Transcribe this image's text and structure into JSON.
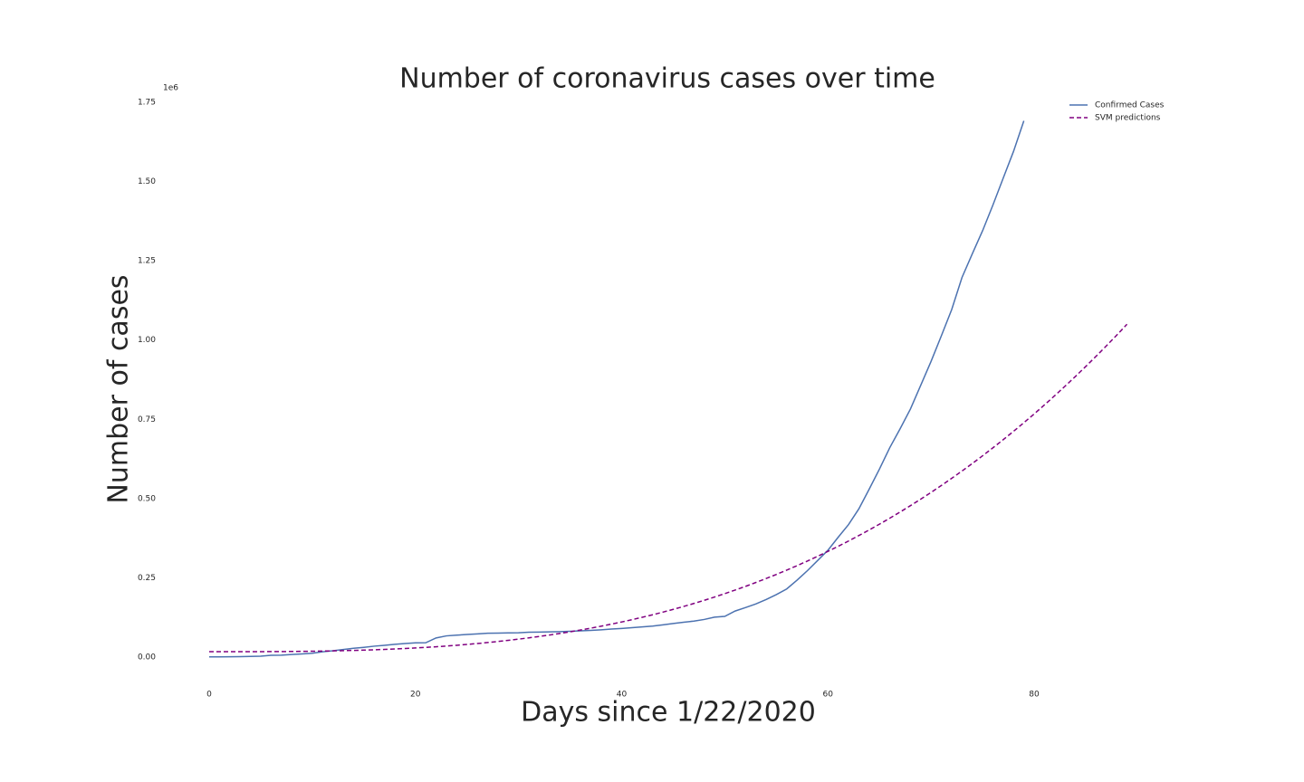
{
  "chart_data": {
    "type": "line",
    "title": "Number of coronavirus cases over time",
    "x_label": "Days since 1/22/2020",
    "y_label": "Number of cases",
    "y_offset_label": "1e6",
    "x": [
      0,
      1,
      2,
      3,
      4,
      5,
      6,
      7,
      8,
      9,
      10,
      11,
      12,
      13,
      14,
      15,
      16,
      17,
      18,
      19,
      20,
      21,
      22,
      23,
      24,
      25,
      26,
      27,
      28,
      29,
      30,
      31,
      32,
      33,
      34,
      35,
      36,
      37,
      38,
      39,
      40,
      41,
      42,
      43,
      44,
      45,
      46,
      47,
      48,
      49,
      50,
      51,
      52,
      53,
      54,
      55,
      56,
      57,
      58,
      59,
      60,
      61,
      62,
      63,
      64,
      65,
      66,
      67,
      68,
      69,
      70,
      71,
      72,
      73,
      74,
      75,
      76,
      77,
      78,
      79,
      80,
      81,
      82,
      83,
      84,
      85,
      86,
      87,
      88,
      89
    ],
    "series": [
      {
        "name": "Confirmed Cases",
        "color": "#4c72b0",
        "dash": "solid",
        "values": [
          555,
          654,
          941,
          1434,
          2118,
          2927,
          5578,
          6166,
          8234,
          9927,
          12038,
          16787,
          19881,
          23892,
          27635,
          30794,
          34391,
          37120,
          40150,
          42762,
          44802,
          45221,
          60368,
          66885,
          69030,
          71224,
          73258,
          75136,
          75639,
          76197,
          76819,
          78572,
          78958,
          79561,
          80406,
          81388,
          82746,
          84112,
          86011,
          88369,
          90306,
          92840,
          95120,
          97886,
          101801,
          105847,
          109821,
          113590,
          118620,
          125875,
          128352,
          145205,
          156101,
          167454,
          181574,
          197102,
          214821,
          242570,
          272208,
          304507,
          336953,
          378235,
          418045,
          467653,
          529591,
          593291,
          660693,
          720140,
          782389,
          857487,
          932605,
          1013466,
          1095917,
          1197405,
          1272115,
          1345101,
          1426096,
          1511104,
          1595350,
          1691719,
          null,
          null,
          null,
          null,
          null,
          null,
          null,
          null,
          null,
          null
        ]
      },
      {
        "name": "SVM predictions",
        "color": "#800080",
        "dash": "dashed",
        "values": [
          17000,
          17001,
          17012,
          17040,
          17094,
          17183,
          17316,
          17502,
          17750,
          18068,
          18465,
          18950,
          19532,
          20219,
          21020,
          21944,
          23001,
          24198,
          25544,
          27048,
          28720,
          30567,
          32599,
          34825,
          37252,
          39891,
          42749,
          45836,
          49160,
          52730,
          56555,
          60644,
          65005,
          69648,
          74580,
          79812,
          85351,
          91207,
          97387,
          103902,
          110760,
          117969,
          125539,
          133478,
          141795,
          150498,
          159597,
          169101,
          179017,
          189356,
          200125,
          211334,
          222991,
          235105,
          247685,
          260739,
          274277,
          288308,
          302839,
          317880,
          333440,
          349527,
          366151,
          383319,
          401041,
          419326,
          438182,
          457618,
          477643,
          498266,
          519495,
          541340,
          563808,
          586910,
          610653,
          635047,
          660100,
          685821,
          712219,
          739302,
          767080,
          795561,
          824754,
          854668,
          885311,
          916693,
          948822,
          981707,
          1015356,
          1049780
        ]
      }
    ],
    "xlim": [
      -4.45,
      93.45
    ],
    "xticks": [
      0,
      20,
      40,
      60,
      80
    ],
    "ylim": [
      -84558,
      1775803
    ],
    "yticks": [
      {
        "value": 0,
        "label": "0.00"
      },
      {
        "value": 250000,
        "label": "0.25"
      },
      {
        "value": 500000,
        "label": "0.50"
      },
      {
        "value": 750000,
        "label": "0.75"
      },
      {
        "value": 1000000,
        "label": "1.00"
      },
      {
        "value": 1250000,
        "label": "1.25"
      },
      {
        "value": 1500000,
        "label": "1.50"
      },
      {
        "value": 1750000,
        "label": "1.75"
      }
    ],
    "grid": false,
    "legend": "upper right"
  }
}
